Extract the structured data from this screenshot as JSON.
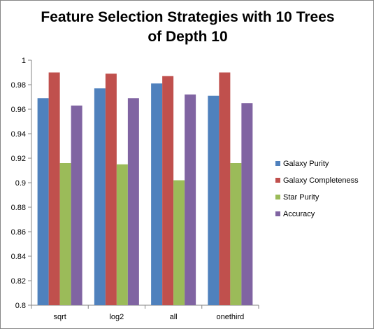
{
  "chart_data": {
    "type": "bar",
    "title_lines": [
      "Feature Selection Strategies with 10 Trees",
      "of Depth 10"
    ],
    "categories": [
      "sqrt",
      "log2",
      "all",
      "onethird"
    ],
    "series": [
      {
        "name": "Galaxy Purity",
        "color": "#4F81BD",
        "values": [
          0.969,
          0.977,
          0.981,
          0.971
        ]
      },
      {
        "name": "Galaxy Completeness",
        "color": "#C0504D",
        "values": [
          0.99,
          0.989,
          0.987,
          0.99
        ]
      },
      {
        "name": "Star Purity",
        "color": "#9BBB59",
        "values": [
          0.916,
          0.915,
          0.902,
          0.916
        ]
      },
      {
        "name": "Accuracy",
        "color": "#8064A2",
        "values": [
          0.963,
          0.969,
          0.972,
          0.965
        ]
      }
    ],
    "yticks": [
      "0.8",
      "0.82",
      "0.84",
      "0.86",
      "0.88",
      "0.9",
      "0.92",
      "0.94",
      "0.96",
      "0.98",
      "1"
    ],
    "ylim": [
      0.8,
      1.0
    ],
    "grid": false,
    "legend_position": "right"
  }
}
